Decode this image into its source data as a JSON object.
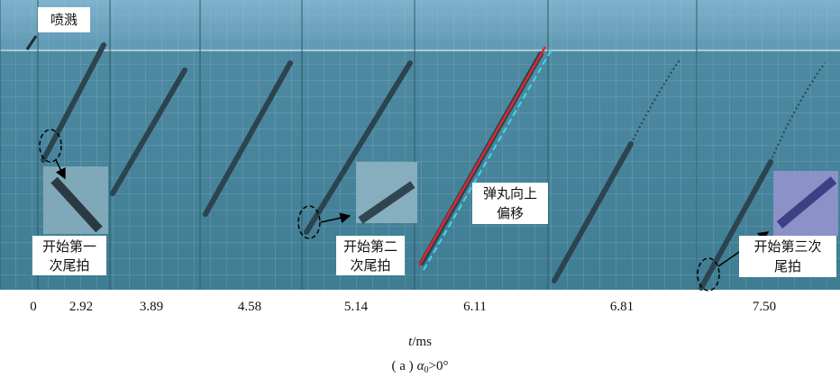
{
  "figure": {
    "annotations": {
      "splash": "喷溅",
      "first_tail_slap": [
        "开始第一",
        "次尾拍"
      ],
      "second_tail_slap": [
        "开始第二",
        "次尾拍"
      ],
      "upward_offset": [
        "弹丸向上",
        "偏移"
      ],
      "third_tail_slap": [
        "开始第三次",
        "尾拍"
      ]
    },
    "times": [
      "0",
      "2.92",
      "3.89",
      "4.58",
      "5.14",
      "6.11",
      "6.81",
      "7.50"
    ],
    "axis_label": {
      "symbol": "t",
      "unit": "/ms"
    },
    "caption": {
      "label": "( a )",
      "symbol": "α",
      "subscript": "0",
      "condition": ">0°"
    }
  }
}
